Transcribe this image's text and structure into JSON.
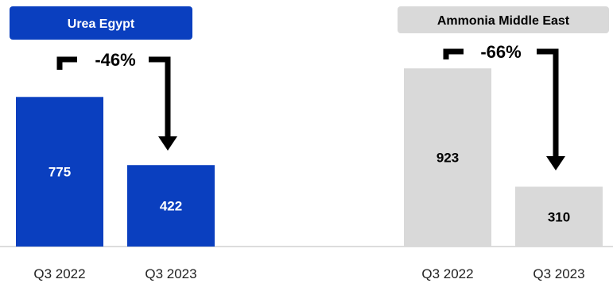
{
  "chart_data": [
    {
      "type": "bar",
      "title": "Urea Egypt",
      "categories": [
        "Q3 2022",
        "Q3 2023"
      ],
      "values": [
        775,
        422
      ],
      "change_label": "-46%",
      "color": "#0a3fbf",
      "title_bg": "#0a3fbf",
      "title_color": "#ffffff",
      "value_label_color": "#ffffff"
    },
    {
      "type": "bar",
      "title": "Ammonia Middle East",
      "categories": [
        "Q3 2022",
        "Q3 2023"
      ],
      "values": [
        923,
        310
      ],
      "change_label": "-66%",
      "color": "#d9d9d9",
      "title_bg": "#d9d9d9",
      "title_color": "#000000",
      "value_label_color": "#000000"
    }
  ]
}
